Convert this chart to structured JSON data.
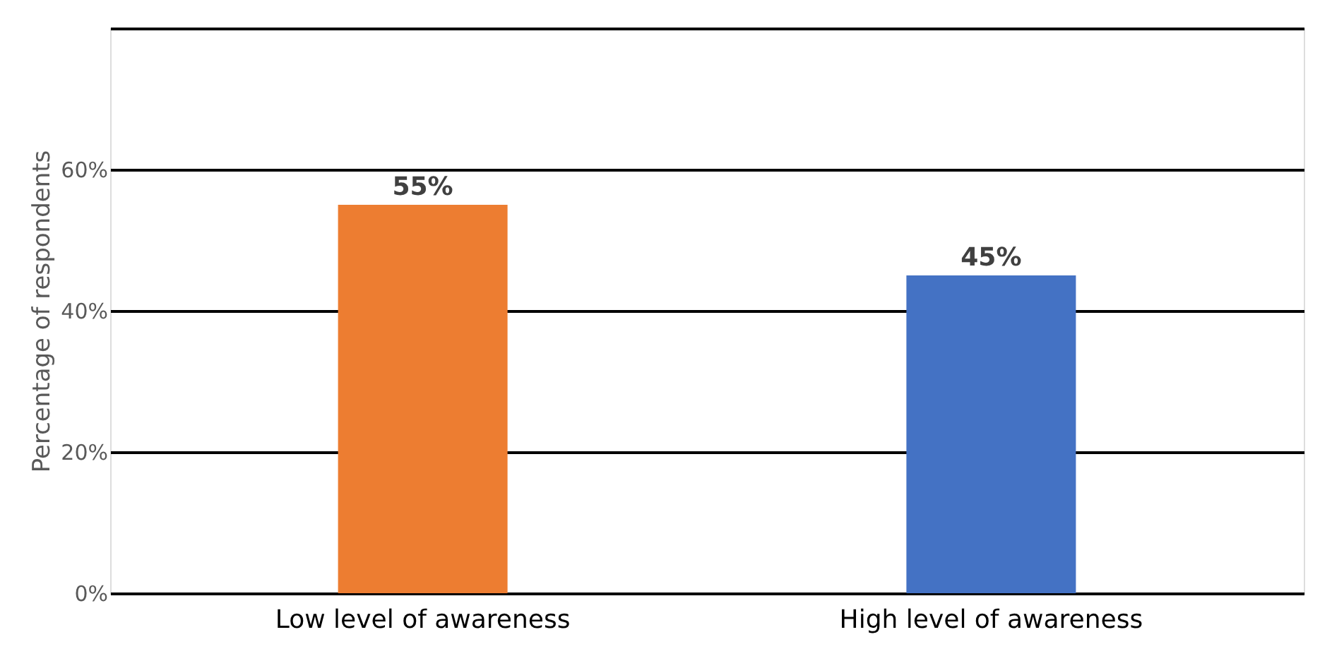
{
  "chart_data": {
    "type": "bar",
    "categories": [
      "Low level of awareness",
      "High level of awareness"
    ],
    "values": [
      55,
      45
    ],
    "colors": [
      "#ed7d31",
      "#4472c4"
    ],
    "value_labels": [
      "55%",
      "45%"
    ],
    "ylabel": "Percentage of respondents",
    "ylim": [
      0,
      80
    ],
    "yticks": [
      {
        "value": 0,
        "label": "0%"
      },
      {
        "value": 20,
        "label": "20%"
      },
      {
        "value": 40,
        "label": "40%"
      },
      {
        "value": 60,
        "label": "60%"
      },
      {
        "value": 80,
        "label": null
      }
    ],
    "grid": "y"
  }
}
